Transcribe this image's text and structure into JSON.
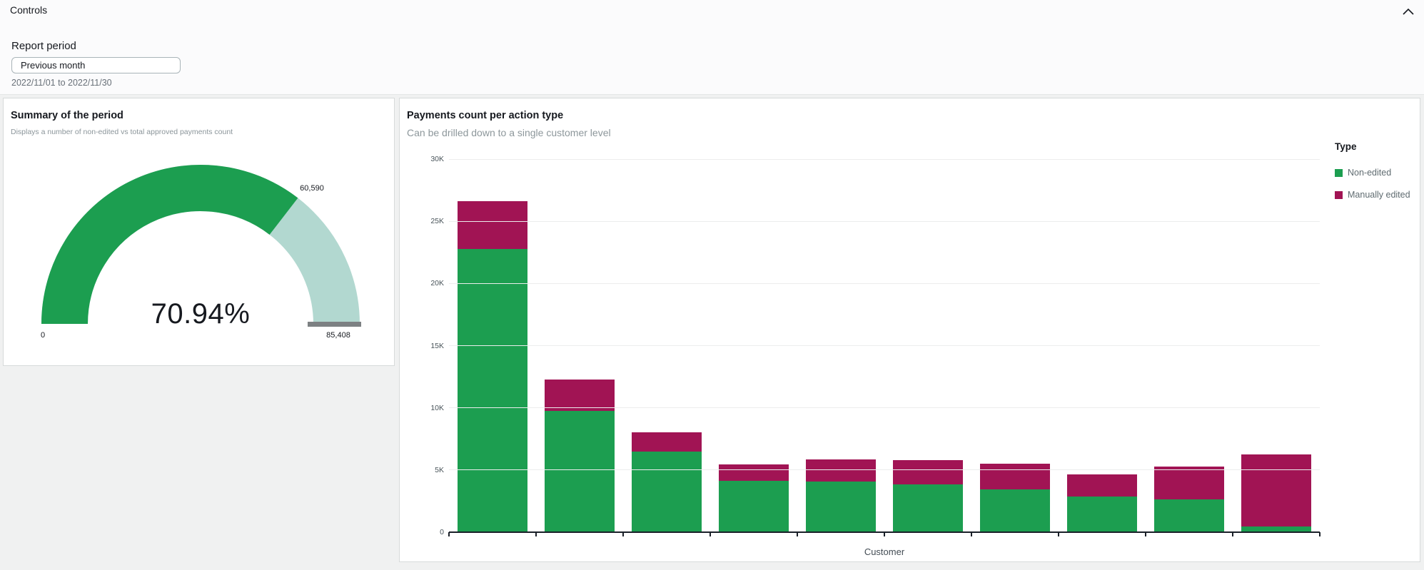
{
  "controls": {
    "title": "Controls",
    "collapse_icon": "chevron-up-icon",
    "report_period": {
      "label": "Report period",
      "value": "Previous month",
      "date_range": "2022/11/01 to 2022/11/30"
    }
  },
  "colors": {
    "green": "#1c9e50",
    "magenta": "#a11454",
    "gauge_track": "#b2d8d0",
    "gauge_marker": "#7d8183",
    "gridline": "#eceded",
    "page_bg": "#f0f1f1"
  },
  "chart_data": [
    {
      "type": "gauge",
      "title": "Summary of the period",
      "subtitle": "Displays a number of non-edited vs total approved payments count",
      "value": 60590,
      "max": 85408,
      "percent": 70.94,
      "percent_label": "70.94%",
      "value_label": "60,590",
      "min_label": "0",
      "max_label": "85,408",
      "fill_color": "#1c9e50",
      "track_color": "#b2d8d0",
      "marker_color": "#7d8183"
    },
    {
      "type": "bar",
      "stacked": true,
      "title": "Payments count per action type",
      "subtitle": "Can be drilled down to a single customer level",
      "xlabel": "Customer",
      "x_tick_labels_hidden": true,
      "num_bars": 10,
      "ylim": [
        0,
        30000
      ],
      "yticks": [
        {
          "label": "30K",
          "value": 30000
        },
        {
          "label": "25K",
          "value": 25000
        },
        {
          "label": "20K",
          "value": 20000
        },
        {
          "label": "15K",
          "value": 15000
        },
        {
          "label": "10K",
          "value": 10000
        },
        {
          "label": "5K",
          "value": 5000
        },
        {
          "label": "0",
          "value": 0
        }
      ],
      "legend_title": "Type",
      "legend_position": "right",
      "grid": true,
      "series": [
        {
          "name": "Non-edited",
          "color": "#1c9e50",
          "values": [
            22800,
            9750,
            6500,
            4150,
            4050,
            3820,
            3430,
            2870,
            2640,
            440
          ]
        },
        {
          "name": "Manually edited",
          "color": "#a11454",
          "values": [
            3800,
            2500,
            1550,
            1300,
            1820,
            1970,
            2080,
            1760,
            2650,
            5830
          ]
        }
      ]
    }
  ]
}
